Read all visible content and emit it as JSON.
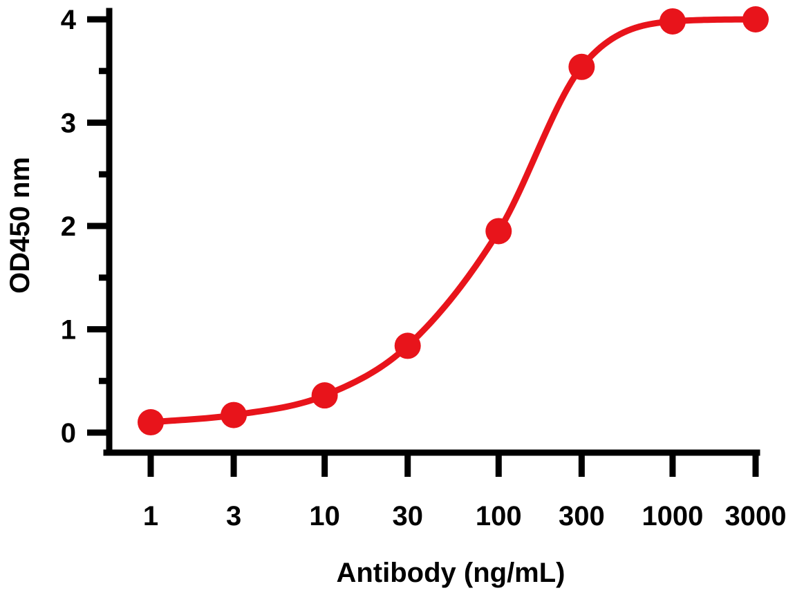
{
  "chart_data": {
    "type": "line",
    "xlabel": "Antibody (ng/mL)",
    "ylabel": "OD450 nm",
    "x_scale": "log",
    "x_ticks": [
      "1",
      "3",
      "10",
      "30",
      "100",
      "300",
      "1000",
      "3000"
    ],
    "y_ticks": [
      "0",
      "1",
      "2",
      "3",
      "4"
    ],
    "ylim": [
      0,
      4
    ],
    "grid": false,
    "legend": "none",
    "series": [
      {
        "color": "#e8141b",
        "x": [
          1,
          3,
          10,
          30,
          100,
          300,
          1000,
          3000
        ],
        "y": [
          0.1,
          0.17,
          0.36,
          0.84,
          1.95,
          3.54,
          3.98,
          4.0
        ]
      }
    ]
  }
}
